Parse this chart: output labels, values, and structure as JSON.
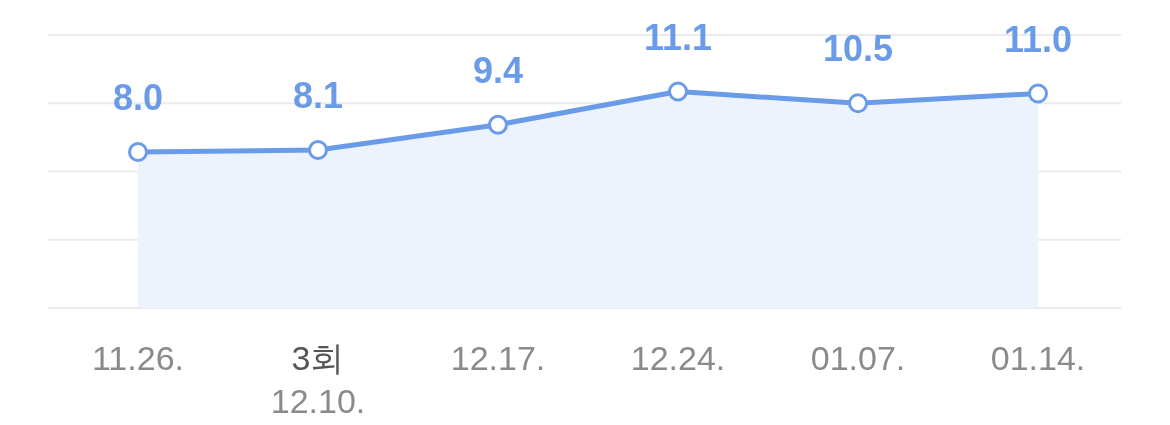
{
  "chart_data": {
    "type": "area",
    "categories": [
      "11.26.",
      "3회\n12.10.",
      "12.17.",
      "12.24.",
      "01.07.",
      "01.14."
    ],
    "series": [
      {
        "color": "#6a9be8",
        "values": [
          8.0,
          8.1,
          9.4,
          11.1,
          10.5,
          11.0
        ],
        "value_labels": [
          "8.0",
          "8.1",
          "9.4",
          "11.1",
          "10.5",
          "11.0"
        ]
      }
    ],
    "ylim": [
      0,
      14
    ],
    "yticks": [
      {
        "value": 0,
        "label": null
      },
      {
        "value": 3.5,
        "label": null
      },
      {
        "value": 7,
        "label": null
      },
      {
        "value": 10.5,
        "label": null
      },
      {
        "value": 14,
        "label": null
      }
    ],
    "tick_labels": "x",
    "grid": "y",
    "marker": "circle"
  }
}
